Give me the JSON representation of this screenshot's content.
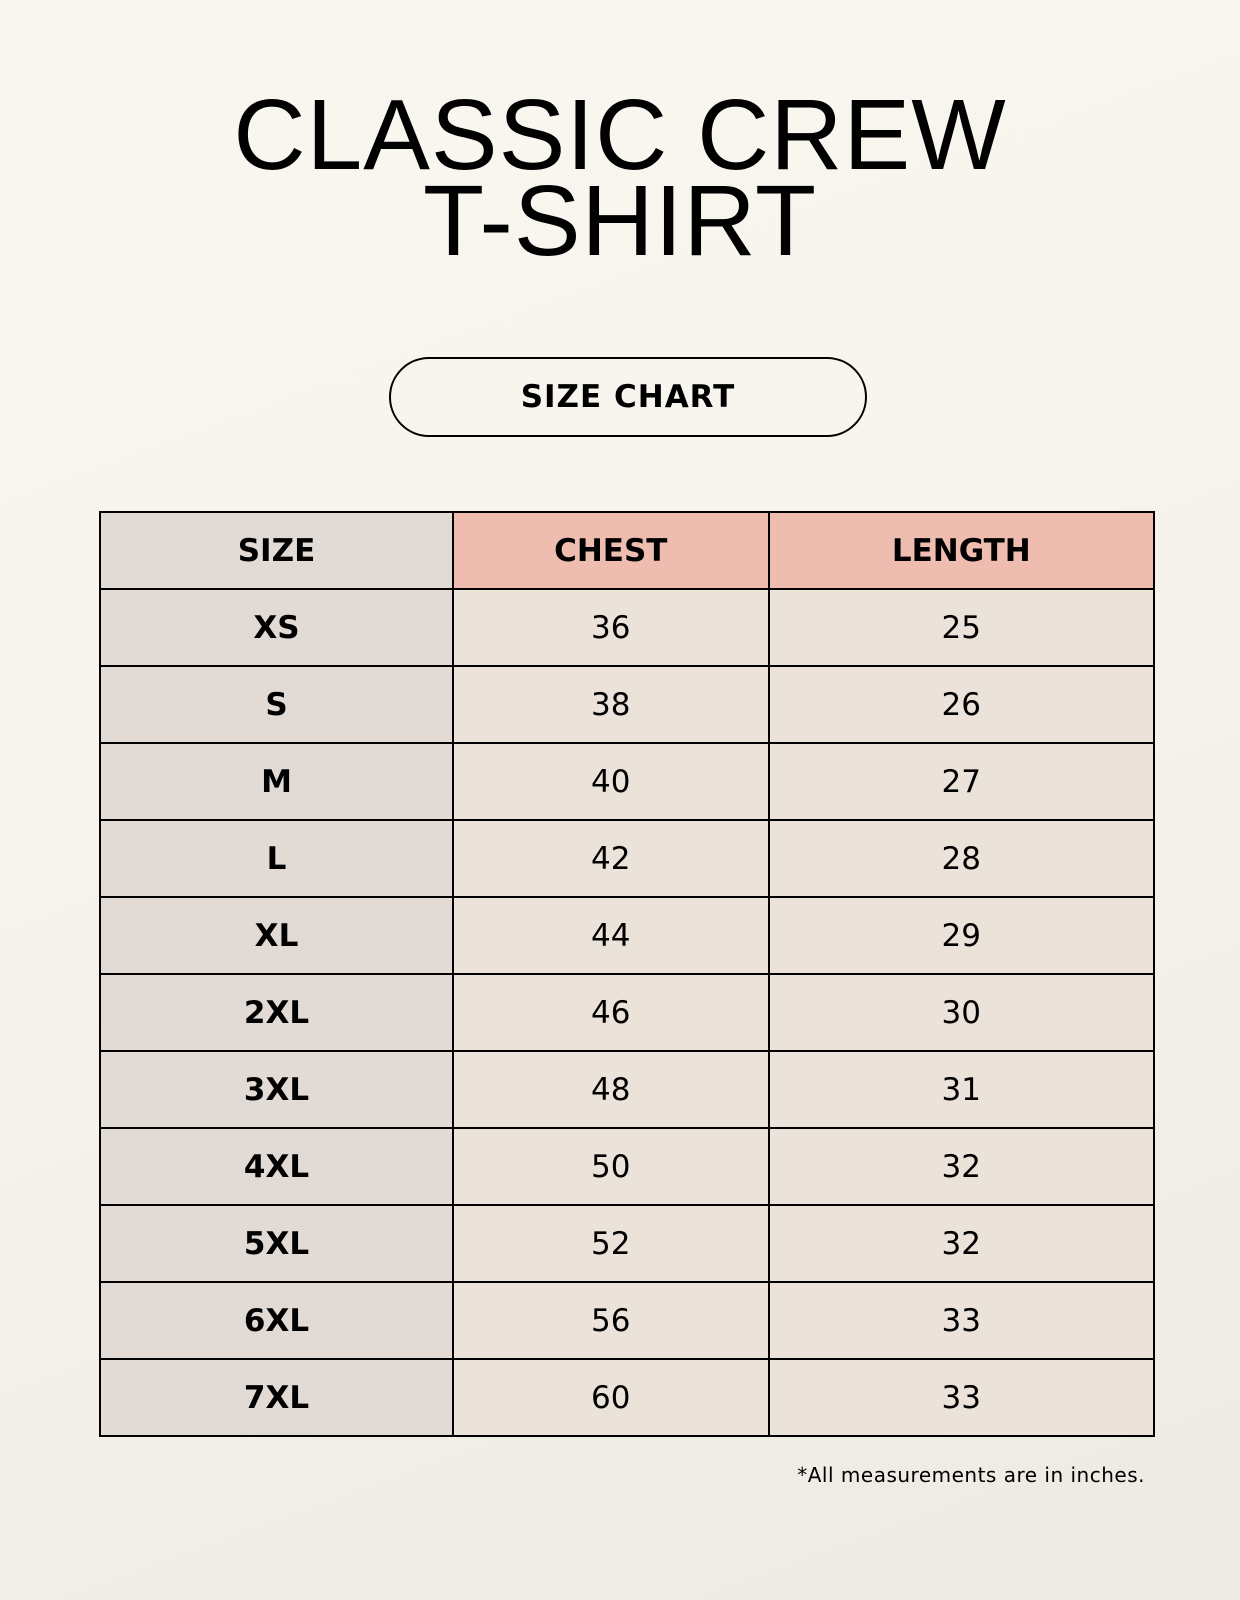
{
  "title": {
    "line1": "CLASSIC CREW",
    "line2": "T-SHIRT"
  },
  "subtitle": "SIZE CHART",
  "table": {
    "headers": [
      "SIZE",
      "CHEST",
      "LENGTH"
    ],
    "rows": [
      [
        "XS",
        "36",
        "25"
      ],
      [
        "S",
        "38",
        "26"
      ],
      [
        "M",
        "40",
        "27"
      ],
      [
        "L",
        "42",
        "28"
      ],
      [
        "XL",
        "44",
        "29"
      ],
      [
        "2XL",
        "46",
        "30"
      ],
      [
        "3XL",
        "48",
        "31"
      ],
      [
        "4XL",
        "50",
        "32"
      ],
      [
        "5XL",
        "52",
        "32"
      ],
      [
        "6XL",
        "56",
        "33"
      ],
      [
        "7XL",
        "60",
        "33"
      ]
    ]
  },
  "footnote": "*All measurements are in inches.",
  "colors": {
    "size_column": "#e2dad4",
    "measure_header": "#eebdb0",
    "measure_cells": "#ebe3d9",
    "background": "#f8f5ee"
  }
}
